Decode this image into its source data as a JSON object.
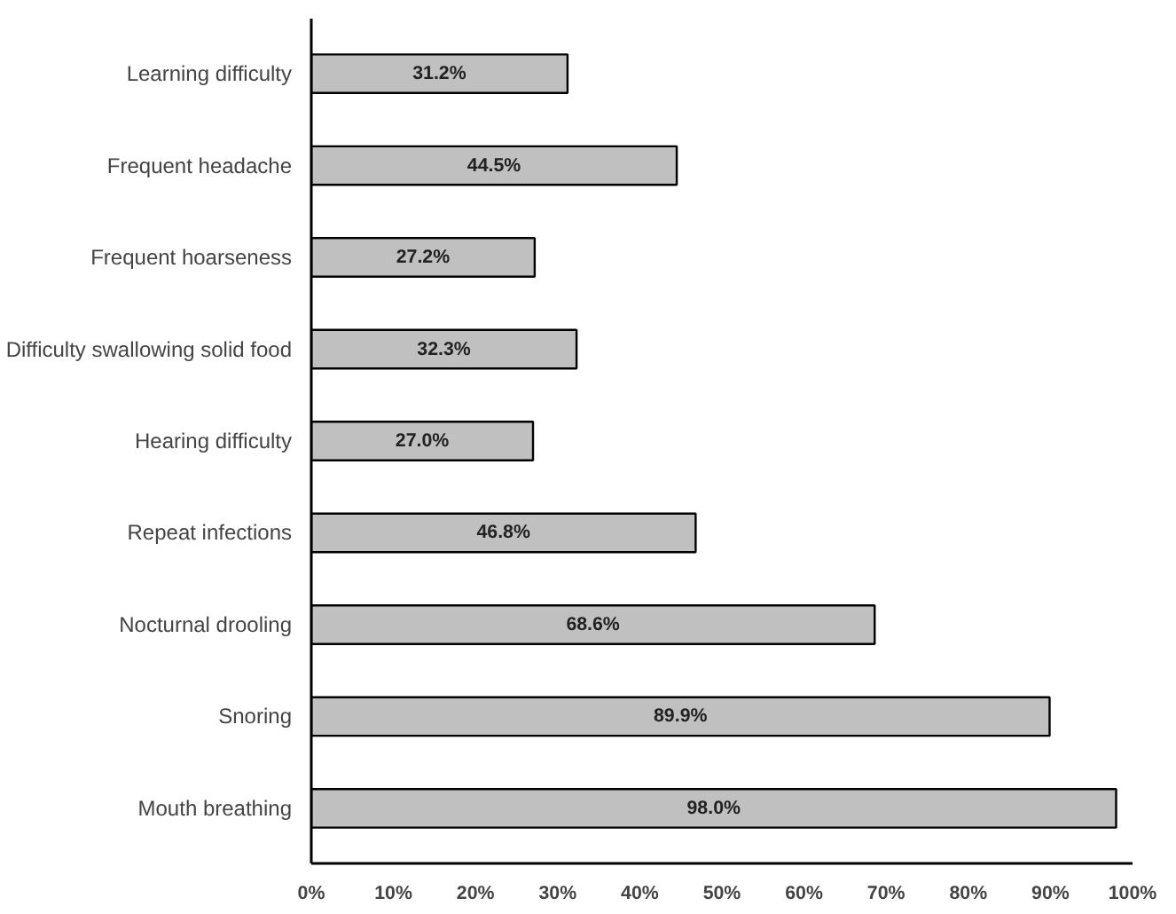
{
  "chart_data": {
    "type": "bar",
    "orientation": "horizontal",
    "categories": [
      "Learning difficulty",
      "Frequent headache",
      "Frequent hoarseness",
      "Difficulty swallowing solid food",
      "Hearing difficulty",
      "Repeat infections",
      "Nocturnal drooling",
      "Snoring",
      "Mouth breathing"
    ],
    "values": [
      31.2,
      44.5,
      27.2,
      32.3,
      27.0,
      46.8,
      68.6,
      89.9,
      98.0
    ],
    "value_labels": [
      "31.2%",
      "44.5%",
      "27.2%",
      "32.3%",
      "27.0%",
      "46.8%",
      "68.6%",
      "89.9%",
      "98.0%"
    ],
    "color": "#c0c0c0",
    "xlim": [
      0,
      100
    ],
    "xticks": [
      {
        "value": 0,
        "label": "0%"
      },
      {
        "value": 10,
        "label": "10%"
      },
      {
        "value": 20,
        "label": "20%"
      },
      {
        "value": 30,
        "label": "30%"
      },
      {
        "value": 40,
        "label": "40%"
      },
      {
        "value": 50,
        "label": "50%"
      },
      {
        "value": 60,
        "label": "60%"
      },
      {
        "value": 70,
        "label": "70%"
      },
      {
        "value": 80,
        "label": "80%"
      },
      {
        "value": 90,
        "label": "90%"
      },
      {
        "value": 100,
        "label": "100%"
      }
    ],
    "grid": false
  }
}
